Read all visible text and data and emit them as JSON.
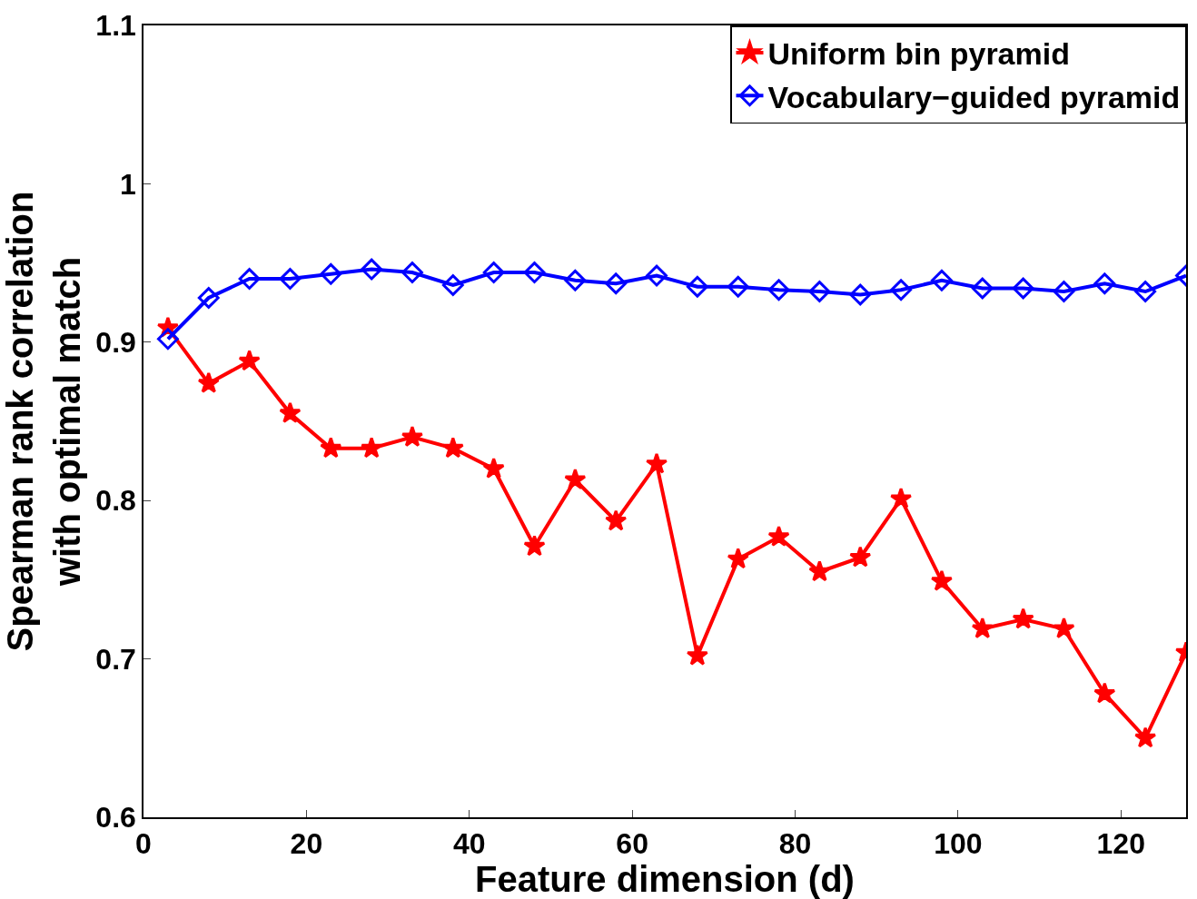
{
  "chart_data": {
    "type": "line",
    "xlabel": "Feature dimension (d)",
    "ylabel": "Spearman rank correlation\nwith optimal match",
    "x": [
      3,
      8,
      13,
      18,
      23,
      28,
      33,
      38,
      43,
      48,
      53,
      58,
      63,
      68,
      73,
      78,
      83,
      88,
      93,
      98,
      103,
      108,
      113,
      118,
      123,
      128
    ],
    "series": [
      {
        "name": "Uniform bin pyramid",
        "color": "#ff0000",
        "marker": "star",
        "values": [
          0.909,
          0.874,
          0.888,
          0.855,
          0.833,
          0.833,
          0.84,
          0.833,
          0.82,
          0.771,
          0.813,
          0.787,
          0.823,
          0.702,
          0.763,
          0.777,
          0.755,
          0.764,
          0.801,
          0.749,
          0.719,
          0.725,
          0.719,
          0.678,
          0.65,
          0.704
        ]
      },
      {
        "name": "Vocabulary−guided pyramid",
        "color": "#0000ff",
        "marker": "diamond",
        "values": [
          0.902,
          0.928,
          0.94,
          0.94,
          0.943,
          0.946,
          0.944,
          0.936,
          0.944,
          0.944,
          0.939,
          0.937,
          0.942,
          0.935,
          0.935,
          0.933,
          0.932,
          0.93,
          0.933,
          0.939,
          0.934,
          0.934,
          0.932,
          0.937,
          0.932,
          0.942
        ]
      }
    ],
    "xlim": [
      0,
      128
    ],
    "xticks": [
      0,
      20,
      40,
      60,
      80,
      100,
      120
    ],
    "ylim": [
      0.6,
      1.1
    ],
    "yticks": [
      0.6,
      0.7,
      0.8,
      0.9,
      1,
      1.1
    ],
    "legend": "top right",
    "line_style": "solid"
  }
}
